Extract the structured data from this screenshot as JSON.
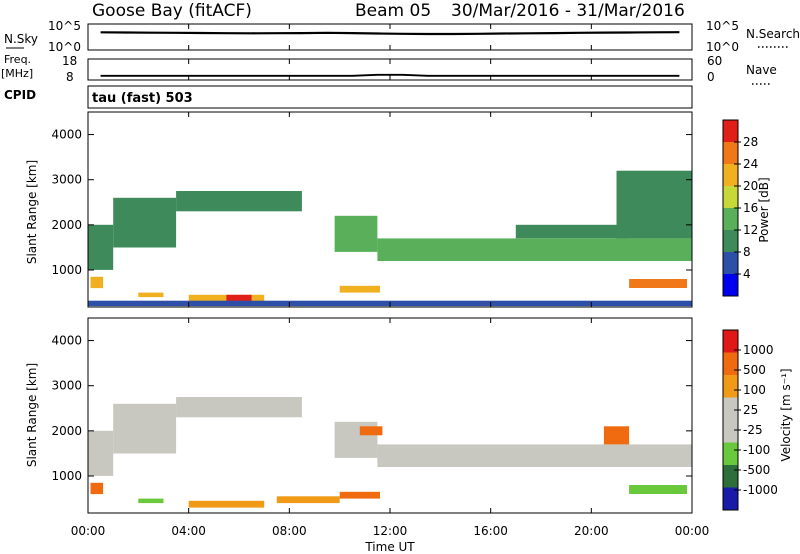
{
  "header": {
    "station": "Goose Bay (fitACF)",
    "beam": "Beam 05",
    "dates": "30/Mar/2016 - 31/Mar/2016"
  },
  "noise_panel": {
    "left_label": "N.Sky",
    "right_label": "N.Search",
    "left_top": "10^5",
    "left_bottom": "10^0",
    "right_top": "10^5",
    "right_bottom": "10^0"
  },
  "freq_panel": {
    "left_label": "Freq.",
    "left_units": "[MHz]",
    "right_label": "Nave",
    "left_top": "18",
    "left_bottom": "8",
    "right_top": "60",
    "right_bottom": "0"
  },
  "cpid_panel": {
    "label": "CPID",
    "mode": "tau (fast) 503"
  },
  "power_panel": {
    "ylabel": "Slant Range [km]",
    "yticks": [
      "4000",
      "3000",
      "2000",
      "1000"
    ],
    "colorbar_label": "Power [dB]",
    "colorbar_ticks": [
      "28",
      "24",
      "20",
      "16",
      "12",
      "8",
      "4"
    ]
  },
  "velocity_panel": {
    "ylabel": "Slant Range [km]",
    "yticks": [
      "4000",
      "3000",
      "2000",
      "1000"
    ],
    "colorbar_label": "Velocity [m s⁻¹]",
    "colorbar_ticks": [
      "1000",
      "500",
      "100",
      "25",
      "-25",
      "-100",
      "-500",
      "-1000"
    ]
  },
  "xaxis": {
    "label": "Time UT",
    "ticks": [
      "00:00",
      "04:00",
      "08:00",
      "12:00",
      "16:00",
      "20:00",
      "00:00"
    ]
  },
  "colors": {
    "power_scale": [
      "#0000ee",
      "#2e4fa8",
      "#3e8a5a",
      "#5ab05a",
      "#c8d838",
      "#f0b020",
      "#f07818",
      "#e02018"
    ],
    "velocity_scale": [
      "#1a1aa8",
      "#2d6e3a",
      "#6ac83c",
      "#c8c8c0",
      "#c8c8c0",
      "#f09a18",
      "#f06a10",
      "#e01818"
    ]
  },
  "chart_data": [
    {
      "type": "line",
      "title": "N.Sky / N.Search",
      "x_range_hours": [
        0,
        24
      ],
      "series": [
        {
          "name": "N.Sky",
          "values": [
            2500,
            2300,
            2100,
            2000,
            1900,
            1700,
            1600,
            1700,
            1800,
            2000,
            1800,
            1500,
            1300,
            1200,
            1200,
            1300,
            1500,
            1600,
            1800,
            2000,
            2200,
            2300,
            2500,
            2700
          ]
        }
      ]
    },
    {
      "type": "line",
      "title": "Freq / Nave",
      "x_range_hours": [
        0,
        24
      ],
      "series": [
        {
          "name": "Freq",
          "values": [
            10,
            10,
            10,
            10,
            10,
            10,
            10,
            10,
            10,
            10,
            10,
            10.5,
            10.5,
            10,
            10,
            10,
            10,
            10,
            10,
            10,
            10,
            10,
            10,
            10
          ]
        }
      ]
    },
    {
      "type": "heatmap",
      "title": "Power",
      "xlabel": "Time UT",
      "ylabel": "Slant Range [km]",
      "x_range_hours": [
        0,
        24
      ],
      "ylim": [
        180,
        4500
      ],
      "colorbar_range_db": [
        0,
        32
      ],
      "bands": [
        {
          "x": [
            0.0,
            1.0
          ],
          "y": [
            1000,
            2000
          ],
          "value": 10
        },
        {
          "x": [
            1.0,
            3.5
          ],
          "y": [
            1500,
            2600
          ],
          "value": 9
        },
        {
          "x": [
            3.5,
            8.5
          ],
          "y": [
            2300,
            2750
          ],
          "value": 10
        },
        {
          "x": [
            9.8,
            11.5
          ],
          "y": [
            1400,
            2200
          ],
          "value": 12
        },
        {
          "x": [
            11.5,
            24.0
          ],
          "y": [
            1200,
            1700
          ],
          "value": 14
        },
        {
          "x": [
            17.0,
            21.5
          ],
          "y": [
            1700,
            2000
          ],
          "value": 11
        },
        {
          "x": [
            21.0,
            24.0
          ],
          "y": [
            1700,
            3200
          ],
          "value": 8
        },
        {
          "x": [
            21.5,
            23.8
          ],
          "y": [
            600,
            800
          ],
          "value": 24
        },
        {
          "x": [
            4.0,
            7.0
          ],
          "y": [
            300,
            450
          ],
          "value": 22
        },
        {
          "x": [
            5.5,
            6.5
          ],
          "y": [
            300,
            450
          ],
          "value": 28
        },
        {
          "x": [
            10.0,
            11.6
          ],
          "y": [
            500,
            650
          ],
          "value": 20
        },
        {
          "x": [
            2.0,
            3.0
          ],
          "y": [
            400,
            500
          ],
          "value": 20
        },
        {
          "x": [
            0.1,
            0.6
          ],
          "y": [
            600,
            850
          ],
          "value": 22
        },
        {
          "x": [
            0.0,
            24.0
          ],
          "y": [
            200,
            320
          ],
          "value": 6
        }
      ]
    },
    {
      "type": "heatmap",
      "title": "Velocity",
      "xlabel": "Time UT",
      "ylabel": "Slant Range [km]",
      "x_range_hours": [
        0,
        24
      ],
      "ylim": [
        180,
        4500
      ],
      "colorbar_range": [
        -1000,
        1000
      ],
      "bands": [
        {
          "x": [
            0.0,
            1.0
          ],
          "y": [
            1000,
            2000
          ],
          "value": 0
        },
        {
          "x": [
            1.0,
            3.5
          ],
          "y": [
            1500,
            2600
          ],
          "value": 0
        },
        {
          "x": [
            3.5,
            8.5
          ],
          "y": [
            2300,
            2750
          ],
          "value": 0
        },
        {
          "x": [
            9.8,
            11.5
          ],
          "y": [
            1400,
            2200
          ],
          "value": 0
        },
        {
          "x": [
            11.5,
            24.0
          ],
          "y": [
            1200,
            1700
          ],
          "value": 0
        },
        {
          "x": [
            10.8,
            11.7
          ],
          "y": [
            1900,
            2100
          ],
          "value": -300
        },
        {
          "x": [
            20.5,
            21.5
          ],
          "y": [
            1700,
            2100
          ],
          "value": -300
        },
        {
          "x": [
            21.5,
            23.8
          ],
          "y": [
            600,
            800
          ],
          "value": 60
        },
        {
          "x": [
            4.0,
            7.0
          ],
          "y": [
            300,
            450
          ],
          "value": -80
        },
        {
          "x": [
            7.5,
            10.0
          ],
          "y": [
            400,
            550
          ],
          "value": -100
        },
        {
          "x": [
            10.0,
            11.6
          ],
          "y": [
            500,
            650
          ],
          "value": -150
        },
        {
          "x": [
            0.1,
            0.6
          ],
          "y": [
            600,
            850
          ],
          "value": -300
        },
        {
          "x": [
            2.0,
            3.0
          ],
          "y": [
            400,
            500
          ],
          "value": 80
        }
      ]
    }
  ]
}
